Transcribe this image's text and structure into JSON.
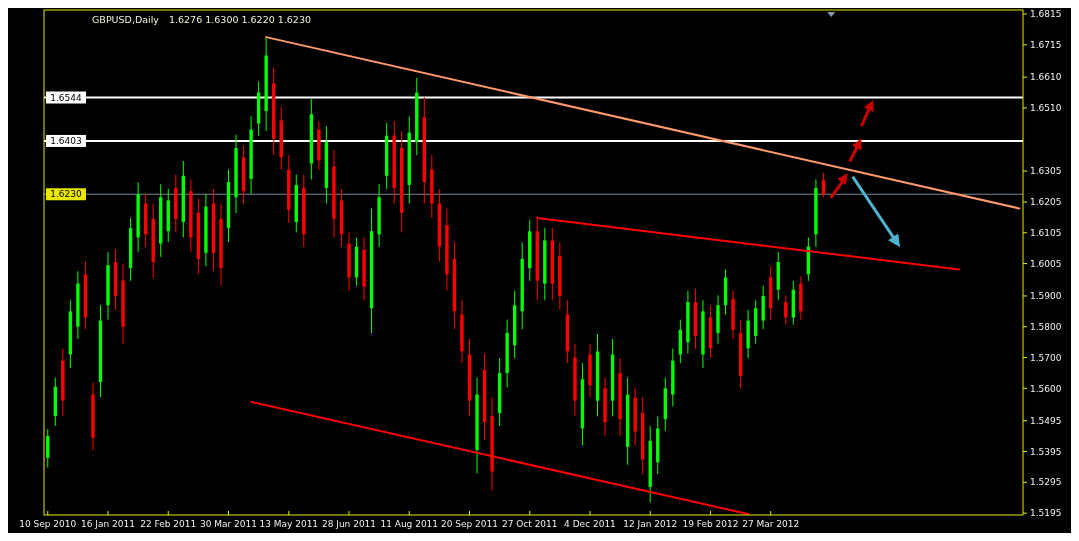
{
  "chart_data": {
    "type": "candlestick",
    "title": "GBPUSD,Daily",
    "subtitle": "1.6276 1.6300 1.6220 1.6230",
    "categories": [
      "10 Sep 2010",
      null,
      null,
      null,
      null,
      null,
      null,
      null,
      "16 Jan 2011",
      null,
      null,
      null,
      null,
      null,
      null,
      null,
      "22 Feb 2011",
      null,
      null,
      null,
      null,
      null,
      null,
      null,
      "30 Mar 2011",
      null,
      null,
      null,
      null,
      null,
      null,
      null,
      "13 May 2011",
      null,
      null,
      null,
      null,
      null,
      null,
      null,
      "28 Jun 2011",
      null,
      null,
      null,
      null,
      null,
      null,
      null,
      "11 Aug 2011",
      null,
      null,
      null,
      null,
      null,
      null,
      null,
      "20 Sep 2011",
      null,
      null,
      null,
      null,
      null,
      null,
      null,
      "27 Oct 2011",
      null,
      null,
      null,
      null,
      null,
      null,
      null,
      "4 Dec 2011",
      null,
      null,
      null,
      null,
      null,
      null,
      null,
      "12 Jan 2012",
      null,
      null,
      null,
      null,
      null,
      null,
      null,
      "19 Feb 2012",
      null,
      null,
      null,
      null,
      null,
      null,
      null,
      "27 Mar 2012",
      null,
      null,
      null,
      null,
      null,
      null,
      null,
      null,
      null,
      null,
      null,
      null,
      null,
      null,
      null,
      null,
      null,
      null,
      null,
      null,
      null,
      null,
      null,
      null,
      null,
      null,
      null,
      null,
      null,
      null,
      null,
      null,
      null
    ],
    "ylim": [
      1.5189,
      1.6828
    ],
    "yticks": [
      1.6815,
      1.6715,
      {
        "value": 1.661,
        "label": "1.6610"
      },
      {
        "value": 1.651,
        "label": "1.6510"
      },
      1.6305,
      1.6205,
      1.6105,
      1.6005,
      {
        "value": 1.59,
        "label": "1.5900"
      },
      {
        "value": 1.58,
        "label": "1.5800"
      },
      {
        "value": 1.57,
        "label": "1.5700"
      },
      {
        "value": 1.56,
        "label": "1.5600"
      },
      1.5495,
      1.5395,
      1.5295,
      1.5195
    ],
    "series": [
      {
        "color": "#00ff00",
        "ohlc": [
          [
            1.5375,
            1.5468,
            1.5343,
            1.5445
          ],
          [
            1.551,
            1.5635,
            1.5478,
            1.5605
          ],
          null,
          [
            1.571,
            1.5886,
            1.5666,
            1.585
          ],
          [
            1.58,
            1.598,
            1.576,
            1.594
          ],
          null,
          null,
          [
            1.562,
            1.587,
            1.5572,
            1.582
          ],
          [
            1.587,
            1.6043,
            1.5823,
            1.6
          ],
          null,
          null,
          [
            1.599,
            1.6153,
            1.5949,
            1.612
          ],
          [
            1.609,
            1.6269,
            1.6043,
            1.623
          ],
          null,
          null,
          [
            1.607,
            1.6263,
            1.6027,
            1.622
          ],
          [
            1.611,
            1.6247,
            1.6074,
            1.621
          ],
          null,
          [
            1.614,
            1.6338,
            1.609,
            1.629
          ],
          null,
          null,
          [
            1.604,
            1.6231,
            1.5996,
            1.619
          ],
          null,
          null,
          [
            1.612,
            1.631,
            1.6074,
            1.627
          ],
          [
            1.622,
            1.6423,
            1.6169,
            1.638
          ],
          null,
          [
            1.628,
            1.6483,
            1.6231,
            1.644
          ],
          [
            1.646,
            1.6596,
            1.642,
            1.656
          ],
          [
            1.65,
            1.6737,
            1.6435,
            1.668
          ],
          null,
          null,
          null,
          [
            1.614,
            1.6294,
            1.6106,
            1.626
          ],
          null,
          [
            1.633,
            1.6539,
            1.6278,
            1.649
          ],
          null,
          [
            1.625,
            1.6451,
            1.62,
            1.64
          ],
          null,
          null,
          null,
          [
            1.596,
            1.609,
            1.5933,
            1.606
          ],
          null,
          [
            1.586,
            1.6184,
            1.5779,
            1.611
          ],
          [
            1.61,
            1.6263,
            1.6059,
            1.622
          ],
          [
            1.629,
            1.6461,
            1.6247,
            1.642
          ],
          null,
          null,
          [
            1.626,
            1.6483,
            1.62,
            1.643
          ],
          [
            1.64,
            1.6608,
            1.6357,
            1.656
          ],
          null,
          null,
          null,
          null,
          null,
          null,
          null,
          [
            1.54,
            1.5635,
            1.5324,
            1.558
          ],
          null,
          null,
          [
            1.552,
            1.5698,
            1.5478,
            1.565
          ],
          [
            1.565,
            1.5823,
            1.5603,
            1.578
          ],
          [
            1.574,
            1.5917,
            1.5698,
            1.587
          ],
          [
            1.585,
            1.6074,
            1.5792,
            1.602
          ],
          [
            1.599,
            1.6147,
            1.5949,
            1.611
          ],
          null,
          [
            1.594,
            1.6121,
            1.5886,
            1.608
          ],
          null,
          null,
          null,
          null,
          [
            1.547,
            1.5682,
            1.5415,
            1.563
          ],
          null,
          [
            1.556,
            1.5776,
            1.5509,
            1.572
          ],
          null,
          [
            1.556,
            1.576,
            1.5509,
            1.571
          ],
          null,
          [
            1.541,
            1.5635,
            1.5352,
            1.558
          ],
          null,
          null,
          [
            1.528,
            1.5478,
            1.523,
            1.543
          ],
          [
            1.536,
            1.5509,
            1.5321,
            1.547
          ],
          [
            1.55,
            1.5635,
            1.5462,
            1.56
          ],
          [
            1.558,
            1.5729,
            1.5541,
            1.569
          ],
          [
            1.571,
            1.5823,
            1.5682,
            1.579
          ],
          [
            1.575,
            1.5917,
            1.5713,
            1.588
          ],
          null,
          [
            1.571,
            1.5886,
            1.5666,
            1.585
          ],
          null,
          [
            1.578,
            1.5902,
            1.5745,
            1.587
          ],
          [
            1.587,
            1.5986,
            1.5839,
            1.596
          ],
          null,
          null,
          [
            1.573,
            1.5855,
            1.5698,
            1.582
          ],
          [
            1.577,
            1.5886,
            1.5745,
            1.586
          ],
          [
            1.582,
            1.5933,
            1.5792,
            1.59
          ],
          null,
          [
            1.592,
            1.6043,
            1.5886,
            1.601
          ],
          null,
          [
            1.583,
            1.5949,
            1.5807,
            1.592
          ],
          null,
          [
            1.597,
            1.609,
            1.5949,
            1.606
          ],
          [
            1.61,
            1.6278,
            1.6059,
            1.625
          ],
          null,
          null,
          null,
          null,
          null,
          null,
          null,
          null,
          null,
          null,
          null,
          null,
          null,
          null,
          null,
          null,
          null,
          null,
          null,
          null,
          null,
          null,
          null,
          null,
          null,
          null,
          null
        ]
      },
      {
        "color": "#ff0000",
        "ohlc": [
          null,
          null,
          [
            1.569,
            1.5729,
            1.5509,
            1.556
          ],
          null,
          null,
          [
            1.597,
            1.6012,
            1.5792,
            1.583
          ],
          [
            1.558,
            1.5619,
            1.5399,
            1.544
          ],
          null,
          null,
          [
            1.601,
            1.6052,
            1.5855,
            1.59
          ],
          [
            1.595,
            1.6005,
            1.5745,
            1.58
          ],
          null,
          null,
          [
            1.62,
            1.6231,
            1.6059,
            1.61
          ],
          [
            1.615,
            1.62,
            1.5958,
            1.601
          ],
          null,
          null,
          [
            1.625,
            1.6294,
            1.6106,
            1.615
          ],
          null,
          [
            1.624,
            1.6278,
            1.6043,
            1.609
          ],
          [
            1.617,
            1.6216,
            1.5971,
            1.602
          ],
          null,
          [
            1.62,
            1.6247,
            1.598,
            1.604
          ],
          [
            1.615,
            1.62,
            1.5933,
            1.599
          ],
          null,
          null,
          [
            1.635,
            1.6388,
            1.62,
            1.624
          ],
          null,
          null,
          null,
          [
            1.659,
            1.664,
            1.6357,
            1.641
          ],
          [
            1.647,
            1.6514,
            1.631,
            1.635
          ],
          [
            1.631,
            1.6357,
            1.6137,
            1.618
          ],
          null,
          [
            1.625,
            1.6294,
            1.6059,
            1.61
          ],
          null,
          [
            1.644,
            1.6467,
            1.631,
            1.634
          ],
          null,
          [
            1.632,
            1.6373,
            1.609,
            1.615
          ],
          [
            1.621,
            1.6247,
            1.6059,
            1.61
          ],
          [
            1.607,
            1.6106,
            1.5917,
            1.596
          ],
          null,
          [
            1.605,
            1.609,
            1.5886,
            1.593
          ],
          null,
          null,
          null,
          [
            1.642,
            1.6467,
            1.62,
            1.625
          ],
          [
            1.638,
            1.6435,
            1.6106,
            1.617
          ],
          null,
          null,
          [
            1.648,
            1.6545,
            1.62,
            1.627
          ],
          [
            1.631,
            1.6357,
            1.6153,
            1.62
          ],
          [
            1.62,
            1.6247,
            1.6012,
            1.606
          ],
          [
            1.613,
            1.6184,
            1.5917,
            1.597
          ],
          [
            1.602,
            1.6074,
            1.5792,
            1.585
          ],
          [
            1.584,
            1.5886,
            1.5682,
            1.572
          ],
          [
            1.571,
            1.576,
            1.5509,
            1.556
          ],
          null,
          [
            1.566,
            1.5713,
            1.5431,
            1.549
          ],
          [
            1.551,
            1.5572,
            1.5267,
            1.533
          ],
          null,
          null,
          null,
          null,
          null,
          [
            1.611,
            1.6159,
            1.5886,
            1.595
          ],
          null,
          [
            1.608,
            1.6121,
            1.5886,
            1.594
          ],
          [
            1.603,
            1.6074,
            1.5855,
            1.59
          ],
          [
            1.584,
            1.5886,
            1.5682,
            1.572
          ],
          [
            1.57,
            1.5745,
            1.5509,
            1.556
          ],
          null,
          [
            1.571,
            1.5745,
            1.5572,
            1.561
          ],
          null,
          [
            1.56,
            1.5635,
            1.5446,
            1.549
          ],
          null,
          [
            1.565,
            1.5698,
            1.5446,
            1.55
          ],
          null,
          [
            1.557,
            1.5603,
            1.5415,
            1.546
          ],
          [
            1.552,
            1.5572,
            1.5321,
            1.537
          ],
          null,
          null,
          null,
          null,
          null,
          null,
          [
            1.588,
            1.5924,
            1.5729,
            1.577
          ],
          null,
          [
            1.583,
            1.587,
            1.5698,
            1.573
          ],
          null,
          null,
          [
            1.589,
            1.5917,
            1.576,
            1.579
          ],
          [
            1.578,
            1.5823,
            1.56,
            1.564
          ],
          null,
          null,
          null,
          [
            1.596,
            1.5996,
            1.5823,
            1.586
          ],
          null,
          [
            1.588,
            1.5902,
            1.5807,
            1.583
          ],
          null,
          [
            1.594,
            1.5964,
            1.5823,
            1.585
          ],
          null,
          null,
          [
            1.6276,
            1.63,
            1.622,
            1.623
          ],
          null,
          null,
          null,
          null,
          null,
          null,
          null,
          null,
          null,
          null,
          null,
          null,
          null,
          null,
          null,
          null,
          null,
          null,
          null,
          null,
          null,
          null,
          null,
          null,
          null,
          null
        ]
      },
      {
        "type": "line",
        "color": "#ff9a6a",
        "values": [
          null,
          null,
          null,
          null,
          null,
          null,
          null,
          null,
          null,
          null,
          null,
          null,
          null,
          null,
          null,
          null,
          null,
          null,
          null,
          null,
          null,
          null,
          null,
          null,
          null,
          null,
          null,
          null,
          null,
          1.674,
          null,
          null,
          null,
          null,
          null,
          null,
          null,
          null,
          null,
          null,
          null,
          null,
          null,
          null,
          null,
          null,
          null,
          null,
          null,
          null,
          null,
          null,
          null,
          null,
          null,
          null,
          null,
          null,
          null,
          null,
          null,
          null,
          null,
          null,
          null,
          null,
          null,
          null,
          null,
          null,
          null,
          null,
          null,
          null,
          null,
          null,
          null,
          null,
          null,
          null,
          null,
          null,
          null,
          null,
          null,
          null,
          null,
          null,
          null,
          null,
          null,
          null,
          null,
          null,
          null,
          null,
          null,
          null,
          null,
          null,
          null,
          null,
          null,
          null,
          null,
          null,
          null,
          null,
          null,
          null,
          null,
          null,
          null,
          null,
          null,
          null,
          null,
          null,
          null,
          null,
          null,
          null,
          null,
          null,
          null,
          null,
          null,
          null,
          null,
          1.6184
        ]
      },
      {
        "type": "line",
        "color": "#ff0000",
        "values": [
          null,
          null,
          null,
          null,
          null,
          null,
          null,
          null,
          null,
          null,
          null,
          null,
          null,
          null,
          null,
          null,
          null,
          null,
          null,
          null,
          null,
          null,
          null,
          null,
          null,
          null,
          null,
          null,
          null,
          null,
          null,
          null,
          null,
          null,
          null,
          null,
          null,
          null,
          null,
          null,
          null,
          null,
          null,
          null,
          null,
          null,
          null,
          null,
          null,
          null,
          null,
          null,
          null,
          null,
          null,
          null,
          null,
          null,
          null,
          null,
          null,
          null,
          null,
          null,
          null,
          1.6153,
          null,
          null,
          null,
          null,
          null,
          null,
          null,
          null,
          null,
          null,
          null,
          null,
          null,
          null,
          null,
          null,
          null,
          null,
          null,
          null,
          null,
          null,
          null,
          null,
          null,
          null,
          null,
          null,
          null,
          null,
          null,
          null,
          null,
          null,
          null,
          null,
          null,
          null,
          null,
          null,
          null,
          null,
          null,
          null,
          null,
          null,
          null,
          null,
          null,
          null,
          null,
          null,
          null,
          null,
          null,
          1.5986,
          null,
          null,
          null,
          null,
          null,
          null,
          null,
          null
        ]
      },
      {
        "type": "line",
        "color": "#ff0000",
        "values": [
          null,
          null,
          null,
          null,
          null,
          null,
          null,
          null,
          null,
          null,
          null,
          null,
          null,
          null,
          null,
          null,
          null,
          null,
          null,
          null,
          null,
          null,
          null,
          null,
          null,
          null,
          null,
          1.5556,
          null,
          null,
          null,
          null,
          null,
          null,
          null,
          null,
          null,
          null,
          null,
          null,
          null,
          null,
          null,
          null,
          null,
          null,
          null,
          null,
          null,
          null,
          null,
          null,
          null,
          null,
          null,
          null,
          null,
          null,
          null,
          null,
          null,
          null,
          null,
          null,
          null,
          null,
          null,
          null,
          null,
          null,
          null,
          null,
          null,
          null,
          null,
          null,
          null,
          null,
          null,
          null,
          null,
          null,
          null,
          null,
          null,
          null,
          null,
          null,
          null,
          null,
          null,
          null,
          null,
          1.5192,
          null,
          null,
          null,
          null,
          null,
          null,
          null,
          null,
          null,
          null,
          null,
          null,
          null,
          null,
          null,
          null,
          null,
          null,
          null,
          null,
          null,
          null,
          null,
          null,
          null,
          null,
          null,
          null,
          null,
          null,
          null,
          null,
          null,
          null,
          null,
          null
        ]
      }
    ],
    "ref_lines": [
      {
        "axis": "y",
        "value": 1.6544,
        "label": "1.6544",
        "color": "#ffffff"
      },
      {
        "axis": "y",
        "value": 1.6403,
        "label": "1.6403",
        "color": "#ffffff"
      },
      {
        "axis": "y",
        "value": 1.623,
        "label": "1.6230",
        "color": "#778899"
      }
    ]
  }
}
